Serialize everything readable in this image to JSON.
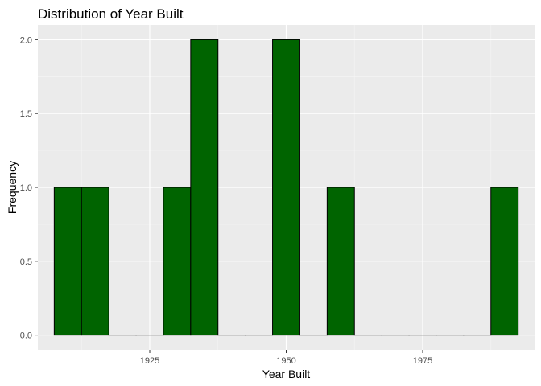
{
  "chart_data": {
    "type": "bar",
    "title": "Distribution of Year Built",
    "xlabel": "Year Built",
    "ylabel": "Frequency",
    "bins": [
      {
        "start": 1907.5,
        "end": 1912.5,
        "count": 1
      },
      {
        "start": 1912.5,
        "end": 1917.5,
        "count": 1
      },
      {
        "start": 1917.5,
        "end": 1922.5,
        "count": 0
      },
      {
        "start": 1922.5,
        "end": 1927.5,
        "count": 0
      },
      {
        "start": 1927.5,
        "end": 1932.5,
        "count": 1
      },
      {
        "start": 1932.5,
        "end": 1937.5,
        "count": 2
      },
      {
        "start": 1937.5,
        "end": 1942.5,
        "count": 0
      },
      {
        "start": 1942.5,
        "end": 1947.5,
        "count": 0
      },
      {
        "start": 1947.5,
        "end": 1952.5,
        "count": 2
      },
      {
        "start": 1952.5,
        "end": 1957.5,
        "count": 0
      },
      {
        "start": 1957.5,
        "end": 1962.5,
        "count": 1
      },
      {
        "start": 1962.5,
        "end": 1967.5,
        "count": 0
      },
      {
        "start": 1967.5,
        "end": 1972.5,
        "count": 0
      },
      {
        "start": 1972.5,
        "end": 1977.5,
        "count": 0
      },
      {
        "start": 1977.5,
        "end": 1982.5,
        "count": 0
      },
      {
        "start": 1982.5,
        "end": 1987.5,
        "count": 0
      },
      {
        "start": 1987.5,
        "end": 1992.5,
        "count": 1
      }
    ],
    "xlim": [
      1904.5,
      1995.5
    ],
    "ylim": [
      -0.1,
      2.1
    ],
    "x_ticks": [
      1925,
      1950,
      1975
    ],
    "x_tick_labels": [
      "1925",
      "1950",
      "1975"
    ],
    "y_ticks": [
      0,
      0.5,
      1,
      1.5,
      2
    ],
    "y_tick_labels": [
      "0.0",
      "0.5",
      "1.0",
      "1.5",
      "2.0"
    ],
    "grid": true,
    "colors": {
      "bar_fill": "#006400",
      "bar_outline": "#000000",
      "panel_background": "#ebebeb",
      "grid_major": "#ffffff",
      "grid_minor": "#f5f5f5"
    }
  }
}
